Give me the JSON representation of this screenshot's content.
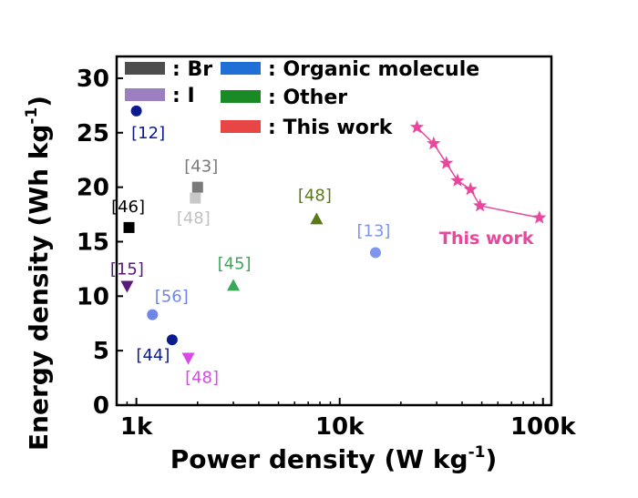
{
  "chart_data": {
    "type": "scatter",
    "x_scale": "log",
    "xlabel_main": "Power density (W kg",
    "xlabel_sup": "-1",
    "xlabel_end": ")",
    "ylabel_main": "Energy density (Wh kg",
    "ylabel_sup": "-1",
    "ylabel_end": ")",
    "xlim": [
      800,
      110000
    ],
    "ylim": [
      0,
      32
    ],
    "x_ticks": [
      {
        "value": 1000,
        "label": "1k"
      },
      {
        "value": 10000,
        "label": "10k"
      },
      {
        "value": 100000,
        "label": "100k"
      }
    ],
    "y_ticks": [
      {
        "value": 0,
        "label": "0"
      },
      {
        "value": 5,
        "label": "5"
      },
      {
        "value": 10,
        "label": "10"
      },
      {
        "value": 15,
        "label": "15"
      },
      {
        "value": 20,
        "label": "20"
      },
      {
        "value": 25,
        "label": "25"
      },
      {
        "value": 30,
        "label": "30"
      }
    ],
    "legend": {
      "placement": "top-left",
      "entries": [
        {
          "label": ": Br",
          "color": "#4d4d4d"
        },
        {
          "label": ": I",
          "color": "#9b7fc0"
        },
        {
          "label": ": Organic molecule",
          "color": "#1f6fd6"
        },
        {
          "label": ": Other",
          "color": "#1a8a25"
        },
        {
          "label": ": This work",
          "color": "#e84545"
        }
      ]
    },
    "points": [
      {
        "ref": "[12]",
        "x": 1000,
        "y": 27.0,
        "marker": "circle",
        "color": "#0b1a8f",
        "label_color": "#0b1a8f"
      },
      {
        "ref": "[46]",
        "x": 920,
        "y": 16.3,
        "marker": "square",
        "color": "#000000",
        "label_color": "#000000"
      },
      {
        "ref": "[43]",
        "x": 2000,
        "y": 20.0,
        "marker": "square",
        "color": "#7a7a7a",
        "label_color": "#7a7a7a"
      },
      {
        "ref": "[48]",
        "x": 1950,
        "y": 19.0,
        "marker": "square",
        "color": "#c8c8c8",
        "label_color": "#c0c0c0"
      },
      {
        "ref": "[15]",
        "x": 900,
        "y": 10.9,
        "marker": "triangle-down",
        "color": "#5a1a7a",
        "label_color": "#5a1a7a"
      },
      {
        "ref": "[56]",
        "x": 1200,
        "y": 8.3,
        "marker": "circle",
        "color": "#6f86e6",
        "label_color": "#6f86e6"
      },
      {
        "ref": "[44]",
        "x": 1500,
        "y": 6.0,
        "marker": "circle",
        "color": "#0b1a8f",
        "label_color": "#0b1a8f"
      },
      {
        "ref": "[48]",
        "x": 1800,
        "y": 4.3,
        "marker": "triangle-down",
        "color": "#d84ae6",
        "label_color": "#d84ae6"
      },
      {
        "ref": "[45]",
        "x": 3000,
        "y": 11.0,
        "marker": "triangle-up",
        "color": "#3aa85a",
        "label_color": "#3aa85a"
      },
      {
        "ref": "[48]",
        "x": 7700,
        "y": 17.1,
        "marker": "triangle-up",
        "color": "#5a7a1a",
        "label_color": "#5a7a1a"
      },
      {
        "ref": "[13]",
        "x": 15000,
        "y": 14.0,
        "marker": "circle",
        "color": "#7f95ee",
        "label_color": "#7f95ee"
      }
    ],
    "series": [
      {
        "name": "This work",
        "color": "#e8479e",
        "marker": "star",
        "x": [
          24000,
          29000,
          33500,
          38000,
          44000,
          49000,
          96000
        ],
        "y": [
          25.5,
          24.0,
          22.2,
          20.6,
          19.8,
          18.3,
          17.2
        ]
      }
    ]
  }
}
